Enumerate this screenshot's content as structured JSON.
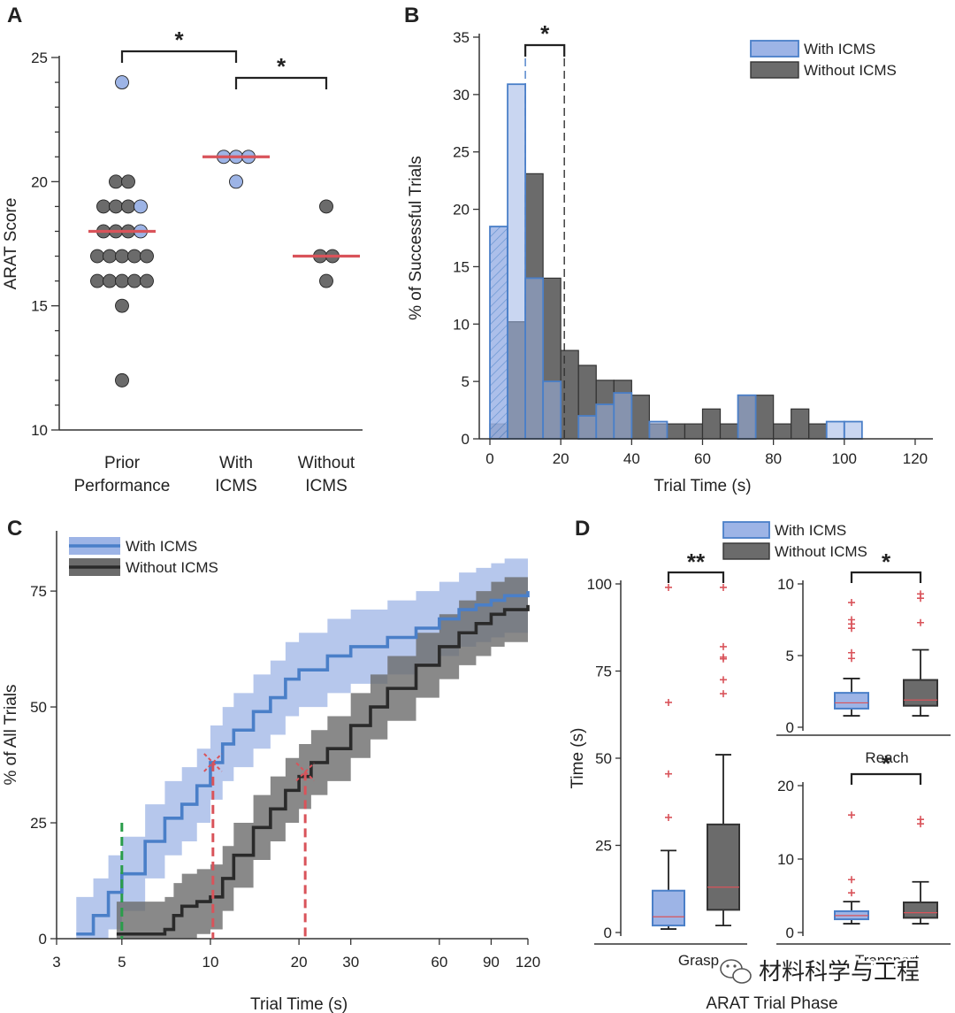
{
  "colors": {
    "with_fill": "#9db4e6",
    "with_stroke": "#4a7fc8",
    "without_fill": "#6b6b6b",
    "without_stroke": "#333333",
    "median": "#d9535a",
    "outlier": "#d9535a",
    "green_line": "#2a9d4a"
  },
  "watermark": {
    "icon": "wechat-icon",
    "text": "材料科学与工程"
  },
  "chart_data": [
    {
      "panel": "A",
      "type": "scatter",
      "ylabel": "ARAT Score",
      "ylim": [
        10,
        25
      ],
      "yticks": [
        "10",
        "15",
        "20",
        "25"
      ],
      "categories": [
        "Prior\nPerformance",
        "With\nICMS",
        "Without\nICMS"
      ],
      "category_lines": [
        [
          "Prior",
          "Performance"
        ],
        [
          "With",
          "ICMS"
        ],
        [
          "Without",
          "ICMS"
        ]
      ],
      "groups": [
        {
          "name": "Prior Performance",
          "points": [
            {
              "score": 24,
              "color": "with",
              "n": 1
            },
            {
              "score": 20,
              "color": "without",
              "n": 2
            },
            {
              "score": 19,
              "color": "without",
              "n": 3
            },
            {
              "score": 19,
              "color": "with",
              "n": 1
            },
            {
              "score": 18,
              "color": "without",
              "n": 3
            },
            {
              "score": 18,
              "color": "with",
              "n": 1
            },
            {
              "score": 17,
              "color": "without",
              "n": 5
            },
            {
              "score": 16,
              "color": "without",
              "n": 5
            },
            {
              "score": 15,
              "color": "without",
              "n": 1
            },
            {
              "score": 12,
              "color": "without",
              "n": 1
            }
          ],
          "median": 18
        },
        {
          "name": "With ICMS",
          "points": [
            {
              "score": 21,
              "color": "with",
              "n": 3
            },
            {
              "score": 20,
              "color": "with",
              "n": 1
            }
          ],
          "median": 21
        },
        {
          "name": "Without ICMS",
          "points": [
            {
              "score": 19,
              "color": "without",
              "n": 1
            },
            {
              "score": 17,
              "color": "without",
              "n": 2
            },
            {
              "score": 16,
              "color": "without",
              "n": 1
            }
          ],
          "median": 17
        }
      ],
      "significance": [
        {
          "from": 0,
          "to": 1,
          "label": "*"
        },
        {
          "from": 1,
          "to": 2,
          "label": "*"
        }
      ]
    },
    {
      "panel": "B",
      "type": "bar",
      "xlabel": "Trial Time (s)",
      "ylabel": "% of Successful Trials",
      "xlim": [
        -3,
        125
      ],
      "ylim": [
        0,
        35
      ],
      "xticks": [
        "0",
        "20",
        "40",
        "60",
        "80",
        "100",
        "120"
      ],
      "yticks": [
        "0",
        "5",
        "10",
        "15",
        "20",
        "25",
        "30",
        "35"
      ],
      "legend": [
        "With ICMS",
        "Without ICMS"
      ],
      "bin_width": 5,
      "series": [
        {
          "name": "With ICMS",
          "values": [
            18.5,
            30.9,
            14,
            5,
            0,
            2,
            3,
            4,
            0,
            1.5,
            0,
            0,
            0,
            0,
            3.8,
            0,
            0,
            0,
            0,
            1.5,
            1.5
          ]
        },
        {
          "name": "Without ICMS",
          "values": [
            1.3,
            10.2,
            23.1,
            14,
            7.7,
            6.4,
            5.1,
            5.1,
            3.8,
            1.3,
            1.3,
            1.3,
            2.6,
            1.3,
            3.8,
            3.8,
            1.3,
            2.6,
            1.3,
            0,
            0
          ]
        }
      ],
      "hatched_bin": {
        "series": "With ICMS",
        "index": 0
      },
      "medians": [
        {
          "series": "With ICMS",
          "x": 10
        },
        {
          "series": "Without ICMS",
          "x": 21
        }
      ],
      "significance": {
        "label": "*"
      }
    },
    {
      "panel": "C",
      "type": "line",
      "xlabel": "Trial Time (s)",
      "ylabel": "% of All Trials",
      "xscale": "log",
      "xlim": [
        3,
        120
      ],
      "ylim": [
        0,
        88
      ],
      "xticks": [
        "3",
        "5",
        "10",
        "20",
        "30",
        "60",
        "90",
        "120"
      ],
      "yticks": [
        "0",
        "25",
        "50",
        "75"
      ],
      "legend": [
        "With ICMS",
        "Without ICMS"
      ],
      "series": [
        {
          "name": "With ICMS",
          "x": [
            3.5,
            4.0,
            4.5,
            5.0,
            6.0,
            7.0,
            8.0,
            9.0,
            10.0,
            11.0,
            12.0,
            14.0,
            16.0,
            18.0,
            20.0,
            25.0,
            30.0,
            40.0,
            50.0,
            60.0,
            70.0,
            80.0,
            90.0,
            100.0,
            120.0
          ],
          "y": [
            1,
            5,
            10,
            14,
            21,
            26,
            29,
            33,
            38,
            42,
            45,
            49,
            52,
            56,
            58,
            61,
            63,
            65,
            67,
            69,
            71,
            72,
            73,
            74,
            75
          ],
          "band": 8
        },
        {
          "name": "Without ICMS",
          "x": [
            4.8,
            6.0,
            7.0,
            7.5,
            8.0,
            9.0,
            10.0,
            11.0,
            12.0,
            14.0,
            16.0,
            18.0,
            20.0,
            22.0,
            25.0,
            30.0,
            35.0,
            40.0,
            50.0,
            60.0,
            70.0,
            80.0,
            90.0,
            100.0,
            120.0
          ],
          "y": [
            1,
            1,
            2,
            5,
            7,
            8,
            9,
            13,
            18,
            24,
            28,
            32,
            35,
            38,
            41,
            46,
            50,
            54,
            59,
            63,
            66,
            68,
            70,
            71,
            72
          ],
          "band": 7
        }
      ],
      "markers": [
        {
          "x": 5,
          "y": 25,
          "kind": "green-dashed"
        },
        {
          "x": 10.2,
          "y": 38,
          "kind": "red-dashed-cross"
        },
        {
          "x": 21,
          "y": 36,
          "kind": "red-dashed-cross"
        }
      ]
    },
    {
      "panel": "D",
      "type": "box",
      "xlabel": "ARAT Trial Phase",
      "ylabel": "Time (s)",
      "legend": [
        "With ICMS",
        "Without ICMS"
      ],
      "subplots": [
        {
          "name": "Grasp",
          "label": "Grasp",
          "ylim": [
            0,
            100
          ],
          "yticks": [
            "0",
            "25",
            "50",
            "75",
            "100"
          ],
          "boxes": [
            {
              "series": "With ICMS",
              "whisker_low": 1,
              "q1": 2,
              "median": 4.5,
              "q3": 12,
              "whisker_high": 23.5,
              "outliers": [
                33,
                45.5,
                66,
                99
              ]
            },
            {
              "series": "Without ICMS",
              "whisker_low": 2,
              "q1": 6.5,
              "median": 13,
              "q3": 31,
              "whisker_high": 51,
              "outliers": [
                68.5,
                72.5,
                78.5,
                79,
                82,
                99
              ]
            }
          ],
          "significance": "**"
        },
        {
          "name": "Reach",
          "label": "Reach",
          "ylim": [
            0,
            10
          ],
          "yticks": [
            "0",
            "5",
            "10"
          ],
          "boxes": [
            {
              "series": "With ICMS",
              "whisker_low": 0.8,
              "q1": 1.3,
              "median": 1.7,
              "q3": 2.4,
              "whisker_high": 3.4,
              "outliers": [
                4.8,
                5.2,
                6.9,
                7.2,
                7.5,
                8.7
              ]
            },
            {
              "series": "Without ICMS",
              "whisker_low": 0.8,
              "q1": 1.5,
              "median": 1.9,
              "q3": 3.3,
              "whisker_high": 5.4,
              "outliers": [
                7.3,
                9.0,
                9.3
              ]
            }
          ],
          "significance": "*"
        },
        {
          "name": "Transport",
          "label": "Transport",
          "ylim": [
            0,
            20
          ],
          "yticks": [
            "0",
            "10",
            "20"
          ],
          "boxes": [
            {
              "series": "With ICMS",
              "whisker_low": 1.2,
              "q1": 1.8,
              "median": 2.3,
              "q3": 2.9,
              "whisker_high": 4.2,
              "outliers": [
                5.4,
                7.2,
                16
              ]
            },
            {
              "series": "Without ICMS",
              "whisker_low": 1.2,
              "q1": 2.0,
              "median": 2.7,
              "q3": 4.1,
              "whisker_high": 6.9,
              "outliers": [
                14.8,
                15.4
              ]
            }
          ],
          "significance": "*"
        }
      ]
    }
  ]
}
